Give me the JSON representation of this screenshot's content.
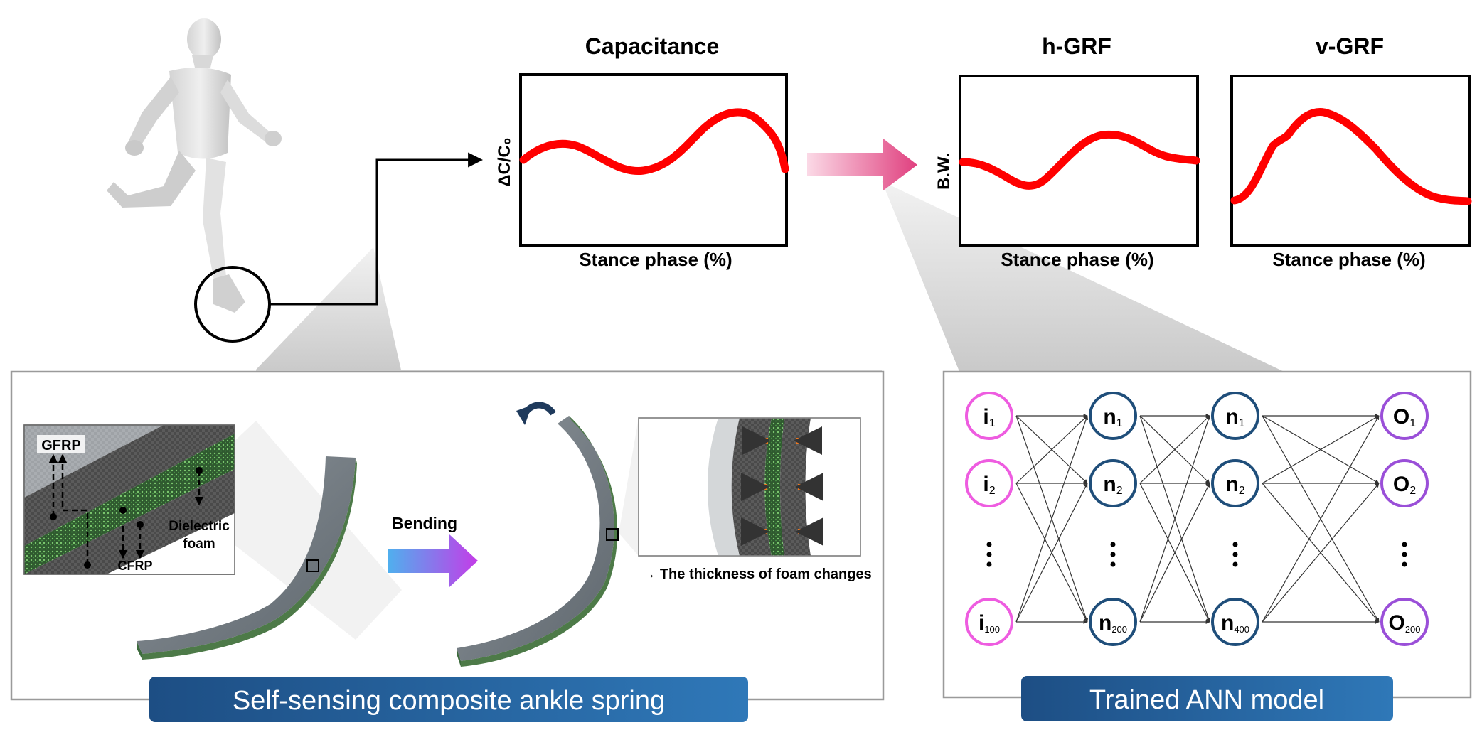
{
  "plots": {
    "capacitance": {
      "title": "Capacitance",
      "xlabel": "Stance phase (%)",
      "ylabel": "ΔC/C₀"
    },
    "h_grf": {
      "title": "h-GRF",
      "xlabel": "Stance phase (%)",
      "ylabel": "B.W."
    },
    "v_grf": {
      "title": "v-GRF",
      "xlabel": "Stance phase (%)"
    }
  },
  "spring_panel": {
    "inset_labels": {
      "gfrp": "GFRP",
      "cfrp": "CFRP",
      "dielectric_line1": "Dielectric",
      "dielectric_line2": "foam"
    },
    "bending_label": "Bending",
    "foam_note": "→ The thickness of foam changes",
    "banner": "Self-sensing composite ankle spring"
  },
  "ann_panel": {
    "input_nodes": [
      {
        "main": "i",
        "sub": "1"
      },
      {
        "main": "i",
        "sub": "2"
      },
      {
        "main": "i",
        "sub": "100"
      }
    ],
    "hidden1_nodes": [
      {
        "main": "n",
        "sub": "1"
      },
      {
        "main": "n",
        "sub": "2"
      },
      {
        "main": "n",
        "sub": "200"
      }
    ],
    "hidden2_nodes": [
      {
        "main": "n",
        "sub": "1"
      },
      {
        "main": "n",
        "sub": "2"
      },
      {
        "main": "n",
        "sub": "400"
      }
    ],
    "output_nodes": [
      {
        "main": "O",
        "sub": "1"
      },
      {
        "main": "O",
        "sub": "2"
      },
      {
        "main": "O",
        "sub": "200"
      }
    ],
    "banner": "Trained ANN model"
  },
  "colors": {
    "curve": "#ff0000",
    "banner_dark": "#1d4e84",
    "banner_light": "#2f78b8",
    "input_node": "#ee5ce0",
    "hidden_node": "#1f4e7a",
    "output_node": "#9a4fd8",
    "arrow_pink": "#e0407f",
    "arrow_purple": "#c43ce8",
    "arrow_blue": "#4fb0ee",
    "orange_arrow": "#f07820"
  }
}
